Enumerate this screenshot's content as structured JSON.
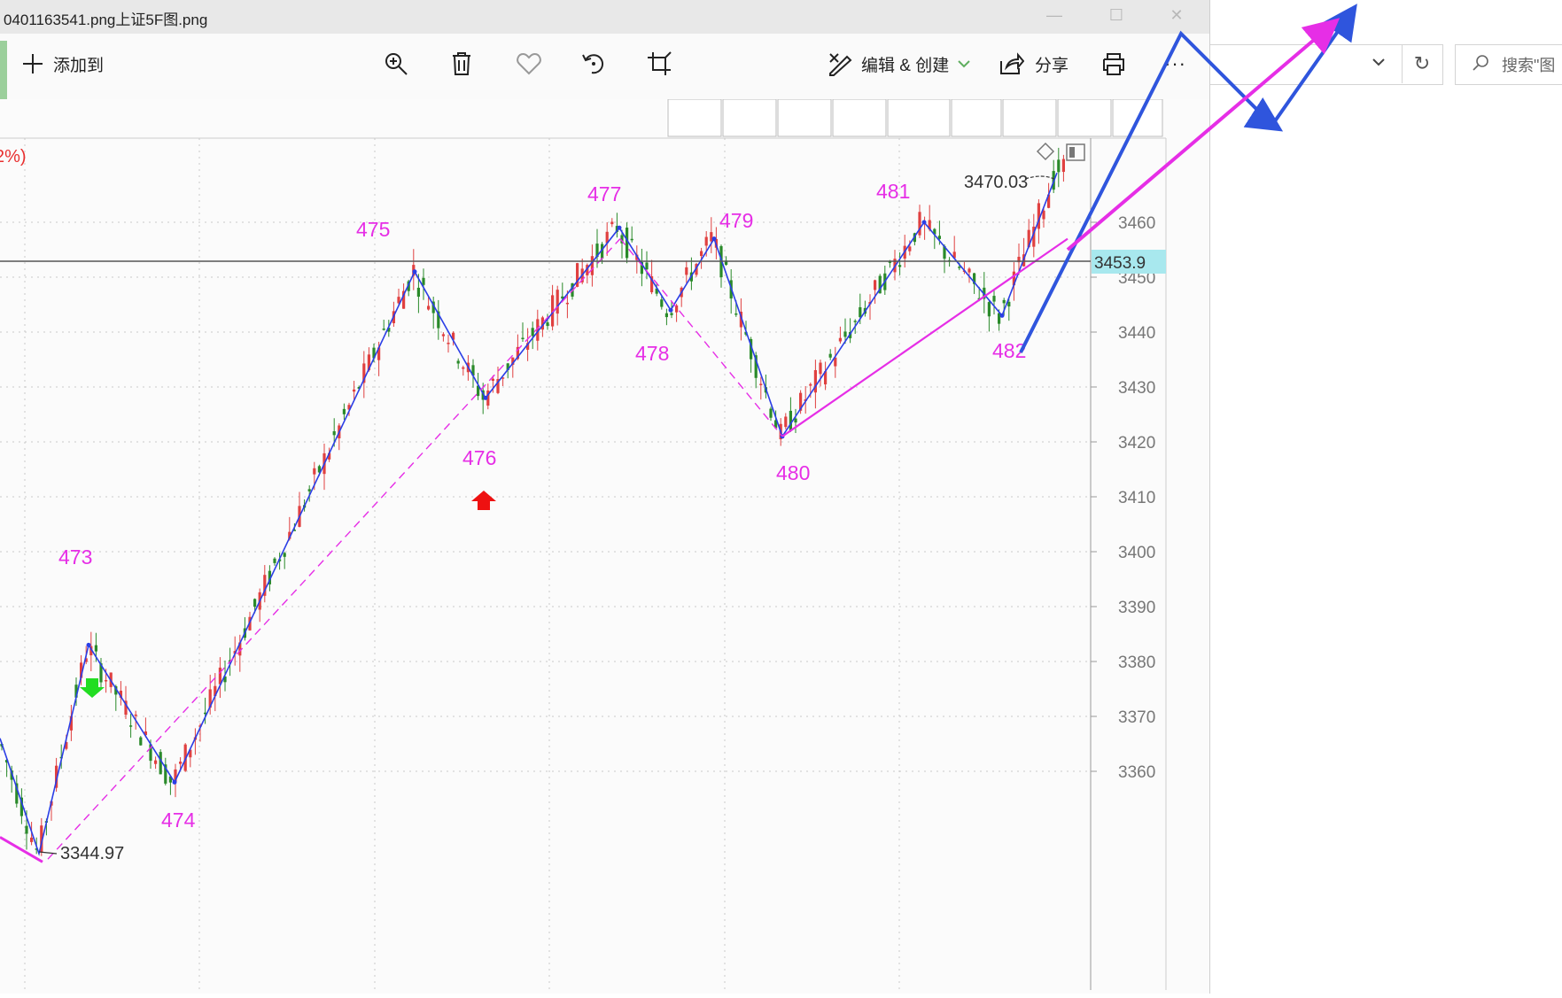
{
  "window": {
    "title": "0401163541.png上证5F图.png",
    "min_icon": "minimize-icon",
    "max_icon": "maximize-icon",
    "close_icon": "close-icon"
  },
  "toolbar": {
    "add_to_label": "添加到",
    "edit_create_label": "编辑 & 创建",
    "share_label": "分享",
    "more_label": "···",
    "icons": [
      "plus-icon",
      "zoom-in-icon",
      "trash-icon",
      "heart-icon",
      "rotate-icon",
      "crop-icon",
      "edit-create-icon",
      "chevron-down-icon",
      "share-icon",
      "print-icon",
      "more-icon"
    ]
  },
  "explorer": {
    "search_placeholder": "搜索\"图",
    "refresh_icon": "refresh-icon",
    "search_icon": "search-icon"
  },
  "chart_data": {
    "type": "candlestick",
    "percent_label": "2%)",
    "y_axis_ticks": [
      3460,
      3450,
      3440,
      3430,
      3420,
      3410,
      3400,
      3390,
      3380,
      3370,
      3360
    ],
    "current_price": "3453.9",
    "high_marker": "3470.03",
    "low_marker": "3344.97",
    "wave_labels": [
      "473",
      "474",
      "475",
      "476",
      "477",
      "478",
      "479",
      "480",
      "481",
      "482"
    ],
    "wave_points": [
      {
        "label": "473",
        "price": 3383
      },
      {
        "label": "474",
        "price": 3358
      },
      {
        "label": "475",
        "price": 3451
      },
      {
        "label": "476",
        "price": 3428
      },
      {
        "label": "477",
        "price": 3459
      },
      {
        "label": "478",
        "price": 3444
      },
      {
        "label": "479",
        "price": 3457
      },
      {
        "label": "480",
        "price": 3421
      },
      {
        "label": "481",
        "price": 3460
      },
      {
        "label": "482",
        "price": 3443
      }
    ],
    "colors": {
      "up": "#e04040",
      "down": "#2a8a2a",
      "wave": "#2b3ee6",
      "trend": "#e62ee6",
      "price_box": "#a8e8ee"
    }
  }
}
